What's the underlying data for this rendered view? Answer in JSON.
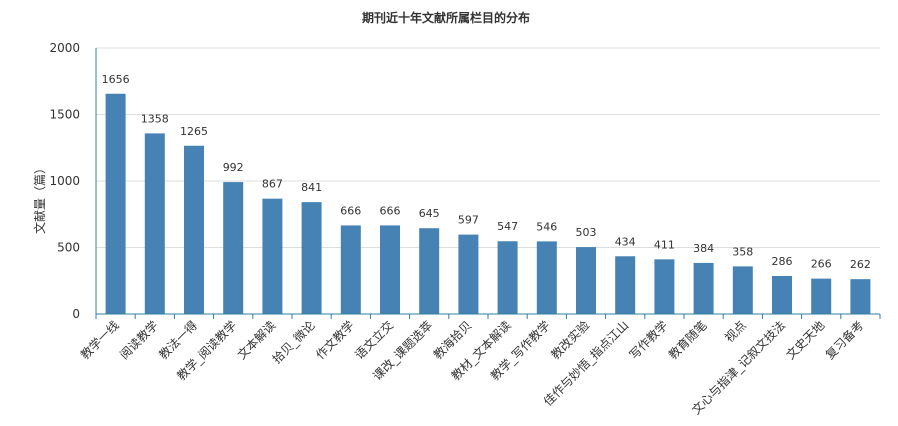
{
  "chart_data": {
    "type": "bar",
    "title": "期刊近十年文献所属栏目的分布",
    "xlabel": "",
    "ylabel": "文献量（篇）",
    "ylim": [
      0,
      2000
    ],
    "yticks": [
      "0",
      "500",
      "1000",
      "1500",
      "2000"
    ],
    "grid": true,
    "legend": "none",
    "bar_color": "#4682b4",
    "categories": [
      "教学一线",
      "阅读教学",
      "教法一得",
      "教学_阅读教学",
      "文本解读",
      "拾贝_微论",
      "作文教学",
      "语文立交",
      "课改_课题选萃",
      "教海拾贝",
      "教材_文本解读",
      "教学_写作教学",
      "教改实验",
      "佳作与妙悟_指点江山",
      "写作教学",
      "教育随笔",
      "视点",
      "文心与指津_记叙文技法",
      "文史天地",
      "复习备考"
    ],
    "values": [
      1656,
      1358,
      1265,
      992,
      867,
      841,
      666,
      666,
      645,
      597,
      547,
      546,
      503,
      434,
      411,
      384,
      358,
      286,
      266,
      262
    ]
  }
}
